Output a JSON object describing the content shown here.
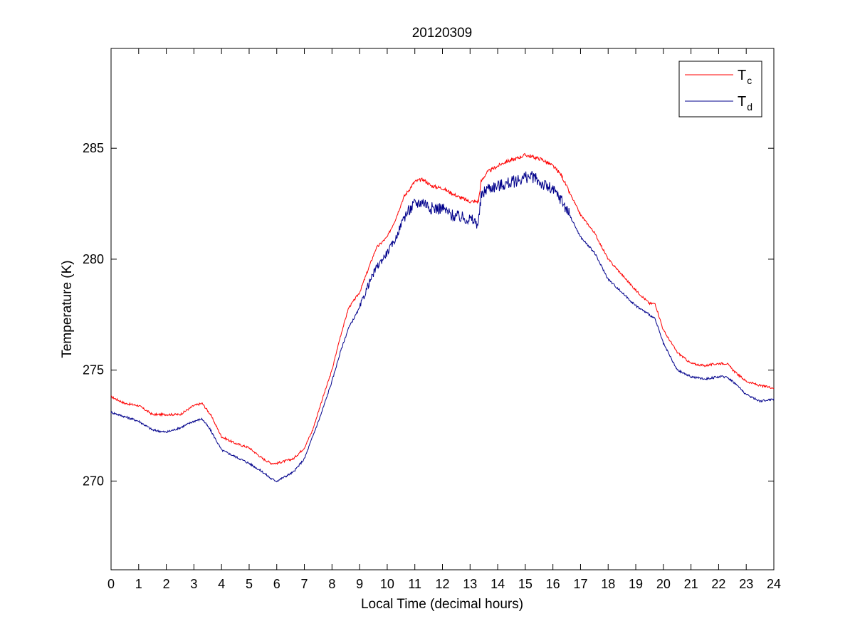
{
  "chart_data": {
    "type": "line",
    "title": "20120309",
    "xlabel": "Local Time (decimal hours)",
    "ylabel": "Temperature (K)",
    "xlim": [
      0,
      24
    ],
    "ylim": [
      266,
      289.5
    ],
    "xticks": [
      0,
      1,
      2,
      3,
      4,
      5,
      6,
      7,
      8,
      9,
      10,
      11,
      12,
      13,
      14,
      15,
      16,
      17,
      18,
      19,
      20,
      21,
      22,
      23,
      24
    ],
    "yticks": [
      270,
      275,
      280,
      285
    ],
    "grid": false,
    "legend_position": "top-right",
    "series": [
      {
        "name": "T",
        "subscript": "c",
        "color": "#ff0000",
        "x": [
          0,
          0.5,
          1,
          1.5,
          2,
          2.5,
          3,
          3.3,
          3.6,
          4,
          4.5,
          5,
          5.5,
          5.8,
          6,
          6.3,
          6.6,
          7,
          7.3,
          7.6,
          8,
          8.3,
          8.6,
          9,
          9.3,
          9.6,
          10,
          10.3,
          10.6,
          11,
          11.3,
          11.6,
          12,
          12.3,
          12.6,
          13,
          13.3,
          13.4,
          13.6,
          14,
          14.3,
          14.6,
          15,
          15.3,
          15.6,
          16,
          16.3,
          16.6,
          17,
          17.5,
          18,
          18.5,
          19,
          19.5,
          19.7,
          20,
          20.5,
          21,
          21.5,
          22,
          22.3,
          22.6,
          23,
          23.5,
          24
        ],
        "y": [
          273.8,
          273.5,
          273.4,
          273.0,
          273.0,
          273.0,
          273.4,
          273.5,
          273.0,
          272.0,
          271.7,
          271.5,
          271.0,
          270.8,
          270.8,
          270.9,
          271.0,
          271.5,
          272.3,
          273.5,
          275.0,
          276.5,
          277.8,
          278.5,
          279.5,
          280.5,
          281.0,
          281.8,
          282.8,
          283.5,
          283.6,
          283.3,
          283.2,
          283.0,
          282.8,
          282.6,
          282.6,
          283.5,
          283.9,
          284.2,
          284.4,
          284.5,
          284.7,
          284.6,
          284.5,
          284.2,
          283.8,
          283.0,
          282.0,
          281.2,
          280.0,
          279.3,
          278.6,
          278.0,
          278.0,
          276.8,
          275.8,
          275.3,
          275.2,
          275.3,
          275.3,
          274.9,
          274.5,
          274.3,
          274.2
        ]
      },
      {
        "name": "T",
        "subscript": "d",
        "color": "#00008b",
        "x": [
          0,
          0.5,
          1,
          1.5,
          2,
          2.5,
          3,
          3.3,
          3.6,
          4,
          4.5,
          5,
          5.5,
          5.8,
          6,
          6.3,
          6.6,
          7,
          7.3,
          7.6,
          8,
          8.3,
          8.6,
          9,
          9.3,
          9.6,
          10,
          10.3,
          10.6,
          11,
          11.3,
          11.6,
          12,
          12.3,
          12.6,
          13,
          13.3,
          13.4,
          13.6,
          14,
          14.3,
          14.6,
          15,
          15.3,
          15.6,
          16,
          16.3,
          16.6,
          17,
          17.5,
          18,
          18.5,
          19,
          19.5,
          19.7,
          20,
          20.5,
          21,
          21.5,
          22,
          22.3,
          22.6,
          23,
          23.5,
          24
        ],
        "y": [
          273.1,
          272.9,
          272.7,
          272.3,
          272.2,
          272.4,
          272.7,
          272.8,
          272.3,
          271.4,
          271.1,
          270.8,
          270.4,
          270.1,
          270.0,
          270.2,
          270.4,
          271.0,
          272.0,
          273.0,
          274.5,
          275.8,
          276.9,
          277.8,
          278.8,
          279.6,
          280.3,
          280.9,
          281.9,
          282.5,
          282.6,
          282.3,
          282.3,
          282.0,
          281.9,
          281.8,
          281.6,
          282.8,
          283.2,
          283.3,
          283.4,
          283.5,
          283.7,
          283.7,
          283.4,
          283.1,
          282.7,
          282.0,
          281.0,
          280.3,
          279.1,
          278.5,
          277.9,
          277.5,
          277.3,
          276.2,
          275.0,
          274.7,
          274.6,
          274.7,
          274.7,
          274.4,
          273.9,
          273.6,
          273.7
        ]
      }
    ]
  }
}
